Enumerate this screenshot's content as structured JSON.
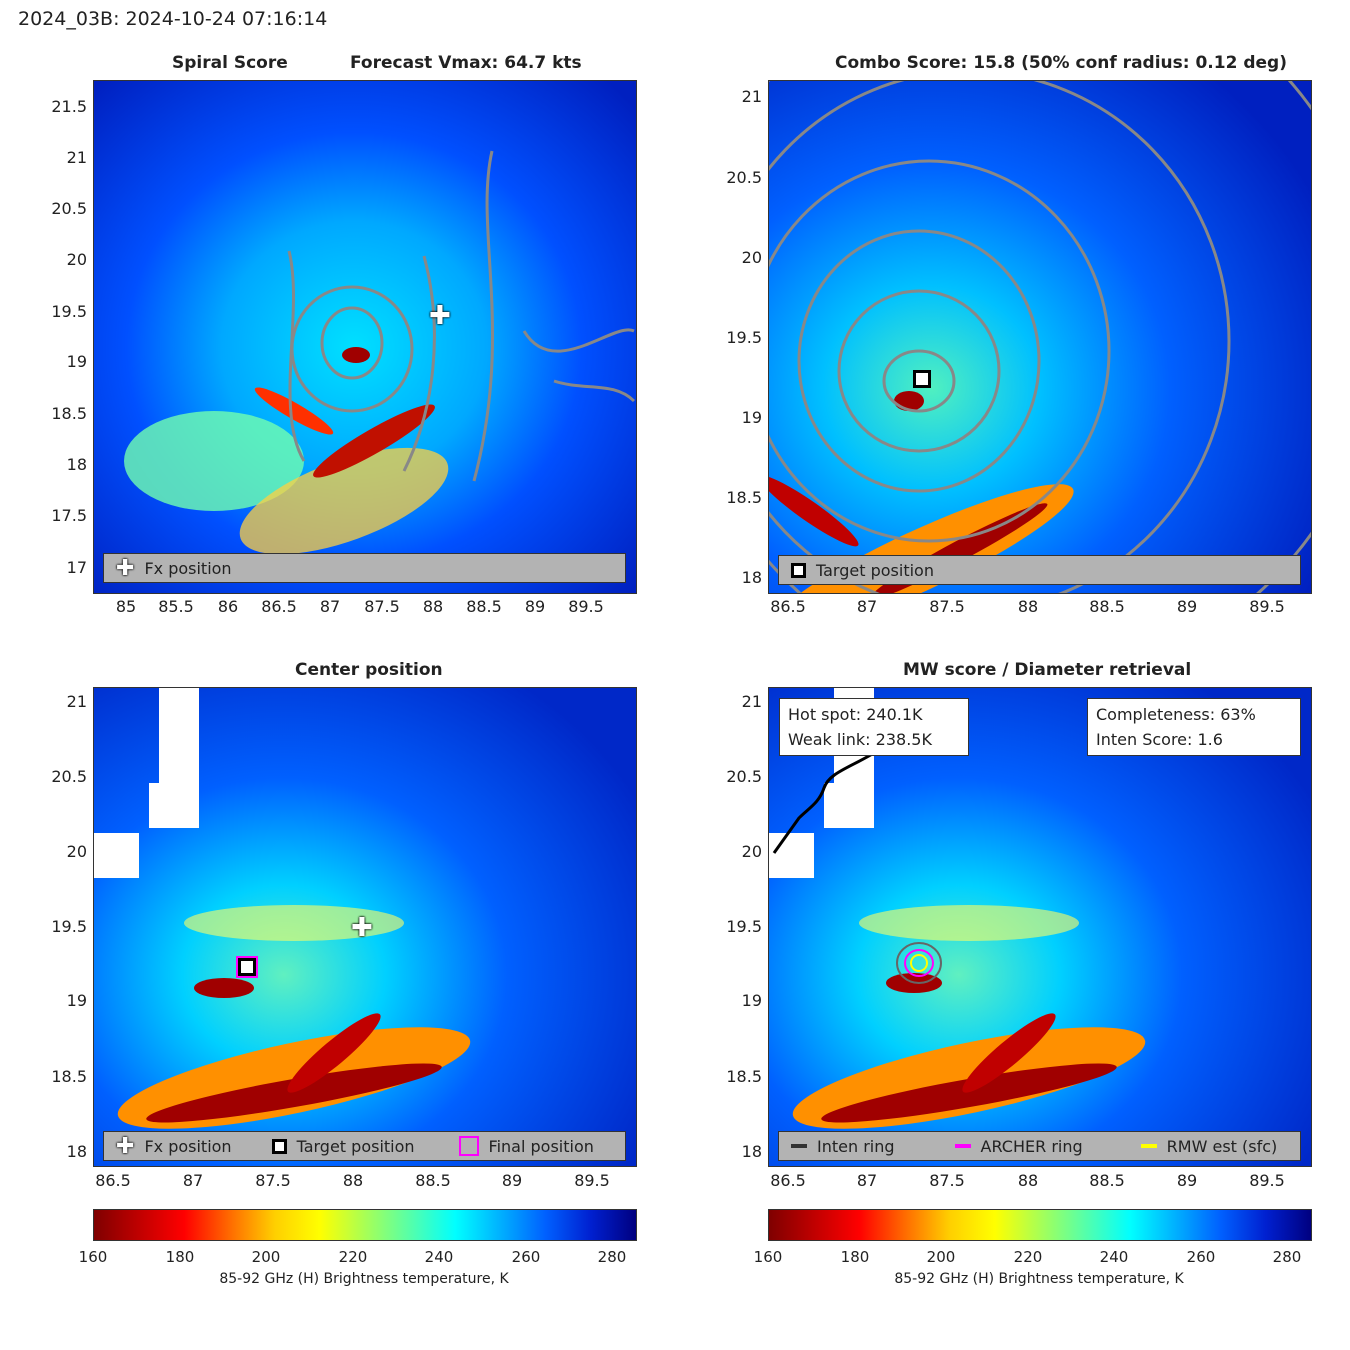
{
  "header": "2024_03B: 2024-10-24 07:16:14",
  "panels": {
    "spiral": {
      "title_left": "Spiral Score",
      "title_right": "Forecast Vmax: 64.7 kts",
      "xticks": [
        "85",
        "85.5",
        "86",
        "86.5",
        "87",
        "87.5",
        "88",
        "88.5",
        "89",
        "89.5"
      ],
      "yticks": [
        "21.5",
        "21",
        "20.5",
        "20",
        "19.5",
        "19",
        "18.5",
        "18",
        "17.5",
        "17"
      ],
      "legend": [
        "Fx position"
      ]
    },
    "combo": {
      "title": "Combo Score: 15.8  (50% conf radius: 0.12 deg)",
      "xticks": [
        "86.5",
        "87",
        "87.5",
        "88",
        "88.5",
        "89",
        "89.5"
      ],
      "yticks": [
        "21",
        "20.5",
        "20",
        "19.5",
        "19",
        "18.5",
        "18"
      ],
      "legend": [
        "Target position"
      ]
    },
    "center": {
      "title": "Center position",
      "xticks": [
        "86.5",
        "87",
        "87.5",
        "88",
        "88.5",
        "89",
        "89.5"
      ],
      "yticks": [
        "21",
        "20.5",
        "20",
        "19.5",
        "19",
        "18.5",
        "18"
      ],
      "legend": [
        "Fx position",
        "Target position",
        "Final position"
      ]
    },
    "mw": {
      "title": "MW score / Diameter retrieval",
      "xticks": [
        "86.5",
        "87",
        "87.5",
        "88",
        "88.5",
        "89",
        "89.5"
      ],
      "yticks": [
        "21",
        "20.5",
        "20",
        "19.5",
        "19",
        "18.5",
        "18"
      ],
      "legend": [
        "Inten ring",
        "ARCHER ring",
        "RMW est (sfc)"
      ],
      "hot_spot": "Hot spot: 240.1K",
      "weak_link": "Weak link: 238.5K",
      "completeness": "Completeness: 63%",
      "inten_score": "Inten Score: 1.6"
    }
  },
  "colorbar": {
    "ticks": [
      "160",
      "180",
      "200",
      "220",
      "240",
      "260",
      "280"
    ],
    "label": "85-92 GHz (H) Brightness temperature, K"
  },
  "chart_data": [
    {
      "type": "heatmap",
      "title": "Spiral Score",
      "subtitle": "Forecast Vmax: 64.7 kts",
      "xlim": [
        84.7,
        89.95
      ],
      "ylim": [
        16.75,
        21.75
      ],
      "fx_position": [
        88.1,
        19.5
      ]
    },
    {
      "type": "heatmap",
      "title": "Combo Score: 15.8  (50% conf radius: 0.12 deg)",
      "xlim": [
        86.3,
        89.7
      ],
      "ylim": [
        17.9,
        21.1
      ],
      "target_position": [
        87.33,
        19.25
      ]
    },
    {
      "type": "heatmap",
      "title": "Center position",
      "xlim": [
        86.3,
        89.7
      ],
      "ylim": [
        17.9,
        21.1
      ],
      "fx_position": [
        88.08,
        19.5
      ],
      "target_position": [
        87.33,
        19.25
      ],
      "final_position": [
        87.33,
        19.25
      ]
    },
    {
      "type": "heatmap",
      "title": "MW score / Diameter retrieval",
      "xlim": [
        86.3,
        89.7
      ],
      "ylim": [
        17.9,
        21.1
      ],
      "colorbar_range": [
        160,
        285
      ]
    }
  ]
}
